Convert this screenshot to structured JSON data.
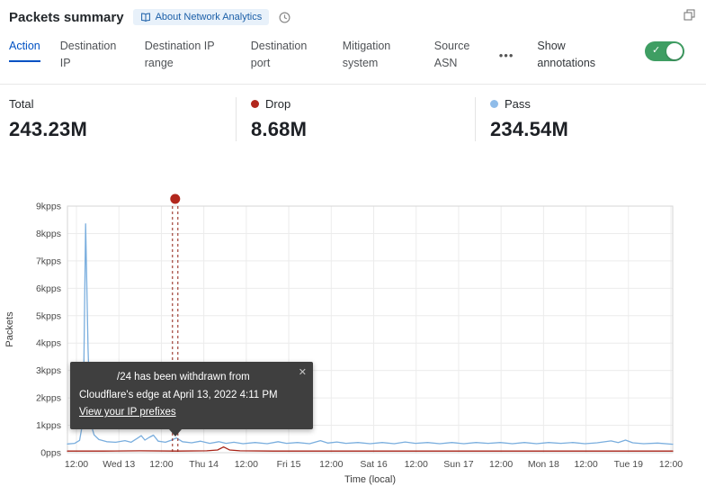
{
  "header": {
    "title": "Packets summary",
    "about_badge": "About Network Analytics"
  },
  "tabs": [
    {
      "label": "Action",
      "active": true
    },
    {
      "label": "Destination IP",
      "active": false
    },
    {
      "label": "Destination IP range",
      "active": false
    },
    {
      "label": "Destination port",
      "active": false
    },
    {
      "label": "Mitigation system",
      "active": false
    },
    {
      "label": "Source ASN",
      "active": false
    },
    {
      "label": "•••",
      "active": false
    }
  ],
  "annotations_toggle": {
    "label": "Show annotations",
    "on": true
  },
  "stats": [
    {
      "label": "Total",
      "value": "243.23M",
      "dot_color": ""
    },
    {
      "label": "Drop",
      "value": "8.68M",
      "dot_color": "#b2271d"
    },
    {
      "label": "Pass",
      "value": "234.54M",
      "dot_color": "#8fbce9"
    }
  ],
  "tooltip": {
    "line1_suffix": "/24 has been withdrawn from",
    "line2": "Cloudflare's edge at April 13, 2022 4:11 PM",
    "link": "View your IP prefixes",
    "close": "✕"
  },
  "chart_data": {
    "type": "line",
    "title": "Packets summary",
    "xlabel": "Time (local)",
    "ylabel": "Packets",
    "x_ticks": [
      "12:00",
      "Wed 13",
      "12:00",
      "Thu 14",
      "12:00",
      "Fri 15",
      "12:00",
      "Sat 16",
      "12:00",
      "Sun 17",
      "12:00",
      "Mon 18",
      "12:00",
      "Tue 19",
      "12:00"
    ],
    "y_ticks": [
      "9kpps",
      "8kpps",
      "7kpps",
      "6kpps",
      "5kpps",
      "4kpps",
      "3kpps",
      "2kpps",
      "1kpps",
      "0pps"
    ],
    "ylim": [
      0,
      9
    ],
    "grid": true,
    "legend_position": "top-stats",
    "series": [
      {
        "name": "Pass",
        "color": "#7aaede",
        "total": "234.54M",
        "points": [
          [
            0.0,
            0.32
          ],
          [
            0.012,
            0.34
          ],
          [
            0.02,
            0.45
          ],
          [
            0.026,
            1.2
          ],
          [
            0.03,
            8.35
          ],
          [
            0.034,
            3.8
          ],
          [
            0.038,
            1.1
          ],
          [
            0.044,
            0.65
          ],
          [
            0.052,
            0.48
          ],
          [
            0.065,
            0.4
          ],
          [
            0.08,
            0.38
          ],
          [
            0.095,
            0.44
          ],
          [
            0.105,
            0.38
          ],
          [
            0.115,
            0.52
          ],
          [
            0.122,
            0.62
          ],
          [
            0.128,
            0.46
          ],
          [
            0.135,
            0.56
          ],
          [
            0.142,
            0.64
          ],
          [
            0.15,
            0.42
          ],
          [
            0.162,
            0.38
          ],
          [
            0.172,
            0.46
          ],
          [
            0.18,
            0.54
          ],
          [
            0.19,
            0.4
          ],
          [
            0.205,
            0.36
          ],
          [
            0.22,
            0.42
          ],
          [
            0.235,
            0.34
          ],
          [
            0.25,
            0.4
          ],
          [
            0.262,
            0.34
          ],
          [
            0.275,
            0.38
          ],
          [
            0.29,
            0.33
          ],
          [
            0.31,
            0.37
          ],
          [
            0.33,
            0.33
          ],
          [
            0.348,
            0.4
          ],
          [
            0.362,
            0.34
          ],
          [
            0.38,
            0.37
          ],
          [
            0.4,
            0.33
          ],
          [
            0.418,
            0.44
          ],
          [
            0.43,
            0.35
          ],
          [
            0.445,
            0.39
          ],
          [
            0.46,
            0.34
          ],
          [
            0.48,
            0.37
          ],
          [
            0.5,
            0.33
          ],
          [
            0.52,
            0.37
          ],
          [
            0.54,
            0.33
          ],
          [
            0.558,
            0.39
          ],
          [
            0.575,
            0.34
          ],
          [
            0.595,
            0.37
          ],
          [
            0.615,
            0.33
          ],
          [
            0.635,
            0.37
          ],
          [
            0.655,
            0.33
          ],
          [
            0.675,
            0.37
          ],
          [
            0.695,
            0.34
          ],
          [
            0.715,
            0.37
          ],
          [
            0.735,
            0.33
          ],
          [
            0.755,
            0.37
          ],
          [
            0.775,
            0.33
          ],
          [
            0.795,
            0.37
          ],
          [
            0.815,
            0.34
          ],
          [
            0.835,
            0.37
          ],
          [
            0.855,
            0.33
          ],
          [
            0.875,
            0.36
          ],
          [
            0.898,
            0.43
          ],
          [
            0.91,
            0.37
          ],
          [
            0.922,
            0.46
          ],
          [
            0.934,
            0.36
          ],
          [
            0.952,
            0.33
          ],
          [
            0.975,
            0.35
          ],
          [
            1.0,
            0.31
          ]
        ]
      },
      {
        "name": "Drop",
        "color": "#a82317",
        "total": "8.68M",
        "points": [
          [
            0.0,
            0.06
          ],
          [
            0.06,
            0.06
          ],
          [
            0.12,
            0.07
          ],
          [
            0.18,
            0.06
          ],
          [
            0.23,
            0.07
          ],
          [
            0.248,
            0.1
          ],
          [
            0.258,
            0.21
          ],
          [
            0.268,
            0.1
          ],
          [
            0.285,
            0.07
          ],
          [
            0.34,
            0.06
          ],
          [
            0.42,
            0.06
          ],
          [
            0.5,
            0.06
          ],
          [
            0.58,
            0.06
          ],
          [
            0.66,
            0.06
          ],
          [
            0.74,
            0.06
          ],
          [
            0.82,
            0.06
          ],
          [
            0.9,
            0.06
          ],
          [
            1.0,
            0.06
          ]
        ]
      }
    ],
    "annotation": {
      "x_frac": 0.178,
      "marker_color": "#b2271d",
      "line_color": "#8f1e12",
      "text": "/24 has been withdrawn from Cloudflare's edge at April 13, 2022 4:11 PM"
    }
  }
}
